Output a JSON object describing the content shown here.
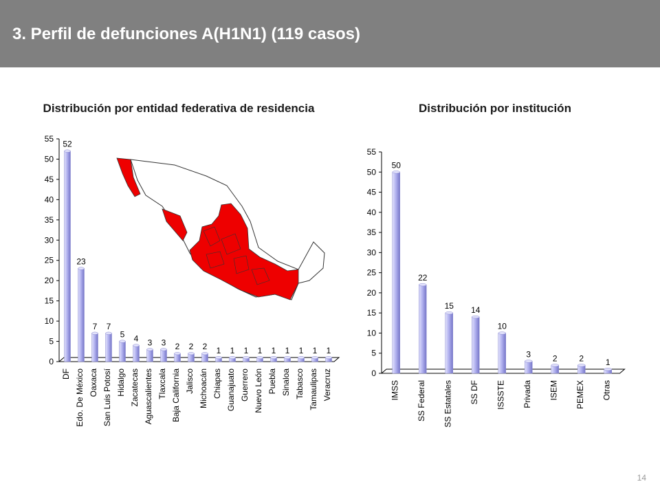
{
  "header": {
    "title": "3. Perfil de defunciones A(H1N1) (119 casos)"
  },
  "page_number": "14",
  "colors": {
    "header_bg": "#808080",
    "bar": "#b3b3f0",
    "bar_light": "#e2e2fb",
    "bar_dark": "#7676c8",
    "map_red": "#ee0000"
  },
  "chart_data": [
    {
      "type": "bar",
      "title": "Distribución por entidad federativa de residencia",
      "categories": [
        "DF",
        "Edo. De México",
        "Oaxaca",
        "San Luis Potosí",
        "Hidalgo",
        "Zacatecas",
        "Aguascalientes",
        "Tlaxcala",
        "Baja California",
        "Jalisco",
        "Michoacán",
        "Chiapas",
        "Guanajuato",
        "Guerrero",
        "Nuevo León",
        "Puebla",
        "Sinaloa",
        "Tabasco",
        "Tamaulipas",
        "Veracruz"
      ],
      "values": [
        52,
        23,
        7,
        7,
        5,
        4,
        3,
        3,
        2,
        2,
        2,
        1,
        1,
        1,
        1,
        1,
        1,
        1,
        1,
        1
      ],
      "ylim": [
        0,
        55
      ],
      "yticks": [
        0,
        5,
        10,
        15,
        20,
        25,
        30,
        35,
        40,
        45,
        50,
        55
      ],
      "data_labels": true,
      "grid": false,
      "inset": "map-of-mexico"
    },
    {
      "type": "bar",
      "title": "Distribución por institución",
      "categories": [
        "IMSS",
        "SS Federal",
        "SS Estatales",
        "SS DF",
        "ISSSTE",
        "Privada",
        "ISEM",
        "PEMEX",
        "Otras"
      ],
      "values": [
        50,
        22,
        15,
        14,
        10,
        3,
        2,
        2,
        1
      ],
      "ylim": [
        0,
        55
      ],
      "yticks": [
        0,
        5,
        10,
        15,
        20,
        25,
        30,
        35,
        40,
        45,
        50,
        55
      ],
      "data_labels": true,
      "grid": false
    }
  ]
}
